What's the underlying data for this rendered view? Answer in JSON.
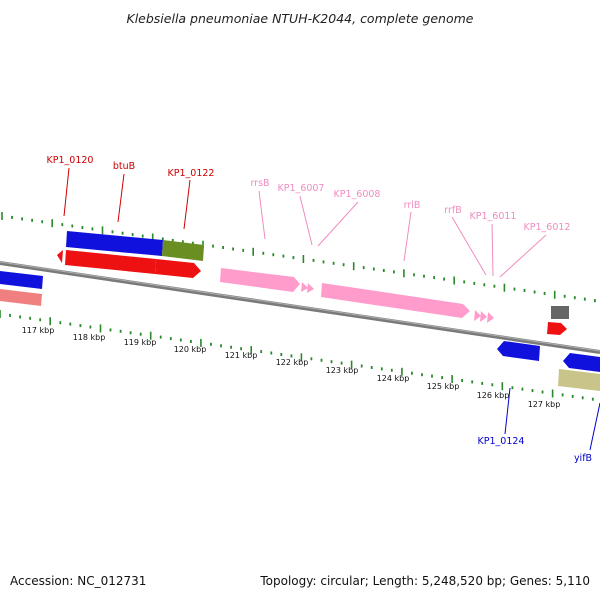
{
  "title": "Klebsiella pneumoniae NTUH-K2044, complete genome",
  "footer": {
    "accession": "Accession: NC_012731",
    "topology": "Topology: circular; Length: 5,248,520 bp; Genes: 5,110"
  },
  "colors": {
    "tick": "#2a8a2a",
    "backbone": "#7a7a7a",
    "red_label": "#cc0000",
    "pink_label": "#f08cc0",
    "blue_label": "#0000cc",
    "cds_blue": "#1111dd",
    "cds_red": "#ee1111",
    "cds_olive": "#6b8e23",
    "cds_khaki": "#c8c48a",
    "rna_pink": "#ff9ccc",
    "cds_salmon": "#f08080",
    "cds_gray": "#666666"
  },
  "kbp_labels": [
    "117 kbp",
    "118 kbp",
    "119 kbp",
    "120 kbp",
    "121 kbp",
    "122 kbp",
    "123 kbp",
    "124 kbp",
    "125 kbp",
    "126 kbp",
    "127 kbp"
  ],
  "gene_labels": [
    {
      "text": "KP1_0120",
      "color": "red"
    },
    {
      "text": "btuB",
      "color": "red"
    },
    {
      "text": "KP1_0122",
      "color": "red"
    },
    {
      "text": "rrsB",
      "color": "pink"
    },
    {
      "text": "KP1_6007",
      "color": "pink"
    },
    {
      "text": "KP1_6008",
      "color": "pink"
    },
    {
      "text": "rrlB",
      "color": "pink"
    },
    {
      "text": "rrfB",
      "color": "pink"
    },
    {
      "text": "KP1_6011",
      "color": "pink"
    },
    {
      "text": "KP1_6012",
      "color": "pink"
    },
    {
      "text": "KP1_0124",
      "color": "blue"
    },
    {
      "text": "yifB",
      "color": "blue"
    }
  ]
}
